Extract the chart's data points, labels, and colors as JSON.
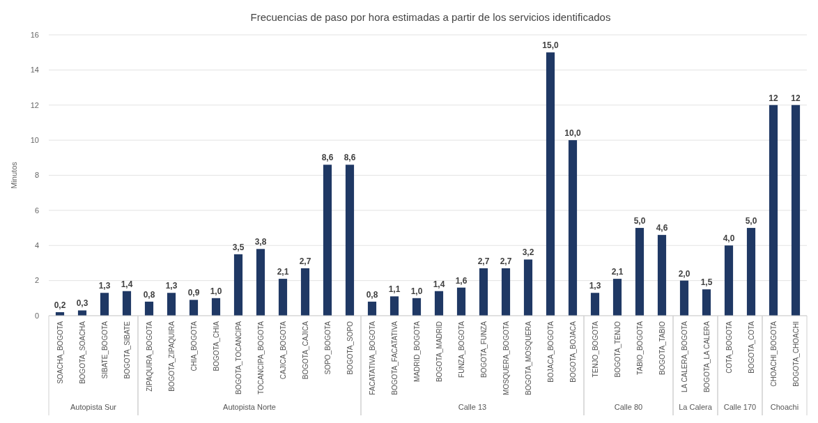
{
  "chart_data": {
    "type": "bar",
    "title": "Frecuencias de paso por hora estimadas a partir de los servicios identificados",
    "ylabel": "Minutos",
    "categories": [
      "SOACHA_BOGOTA",
      "BOGOTA_SOACHA",
      "SIBATE_BOGOTA",
      "BOGOTA_SIBATE",
      "ZIPAQUIRA_BOGOTA",
      "BOGOTA_ZIPAQUIRA",
      "CHIA_BOGOTA",
      "BOGOTA_CHIA",
      "BOGOTA_TOCANCIPA",
      "TOCANCIPA_BOGOTA",
      "CAJICA_BOGOTA",
      "BOGOTA_CAJICA",
      "SOPO_BOGOTA",
      "BOGOTA_SOPO",
      "FACATATIVA_BOGOTA",
      "BOGOTA_FACATATIVA",
      "MADRID_BOGOTA",
      "BOGOTA_MADRID",
      "FUNZA_BOGOTA",
      "BOGOTA_FUNZA",
      "MOSQUERA_BOGOTA",
      "BOGOTA_MOSQUERA",
      "BOJACA_BOGOTA",
      "BOGOTA_BOJACA",
      "TENJO_BOGOTA",
      "BOGOTA_TENJO",
      "TABIO_BOGOTA",
      "BOGOTA_TABIO",
      "LA CALERA_BOGOTA",
      "BOGOTA_LA CALERA",
      "COTA_BOGOTA",
      "BOGOTA_COTA",
      "CHOACHI_BOGOTA",
      "BOGOTA_CHOACHI"
    ],
    "values": [
      0.2,
      0.3,
      1.3,
      1.4,
      0.8,
      1.3,
      0.9,
      1.0,
      3.5,
      3.8,
      2.1,
      2.7,
      8.6,
      8.6,
      0.8,
      1.1,
      1.0,
      1.4,
      1.6,
      2.7,
      2.7,
      3.2,
      15.0,
      10.0,
      1.3,
      2.1,
      5.0,
      4.6,
      2.0,
      1.5,
      4.0,
      5.0,
      12,
      12
    ],
    "value_labels": [
      "0,2",
      "0,3",
      "1,3",
      "1,4",
      "0,8",
      "1,3",
      "0,9",
      "1,0",
      "3,5",
      "3,8",
      "2,1",
      "2,7",
      "8,6",
      "8,6",
      "0,8",
      "1,1",
      "1,0",
      "1,4",
      "1,6",
      "2,7",
      "2,7",
      "3,2",
      "15,0",
      "10,0",
      "1,3",
      "2,1",
      "5,0",
      "4,6",
      "2,0",
      "1,5",
      "4,0",
      "5,0",
      "12",
      "12"
    ],
    "color": "#1f3864",
    "ylim": [
      0,
      16
    ],
    "yticks": [
      0,
      2,
      4,
      6,
      8,
      10,
      12,
      14,
      16
    ],
    "grid": "y",
    "annotations": [
      "Autopista Sur",
      "Autopista Norte",
      "Calle 13",
      "Calle 80",
      "La Calera",
      "Calle 170",
      "Choachi"
    ]
  }
}
